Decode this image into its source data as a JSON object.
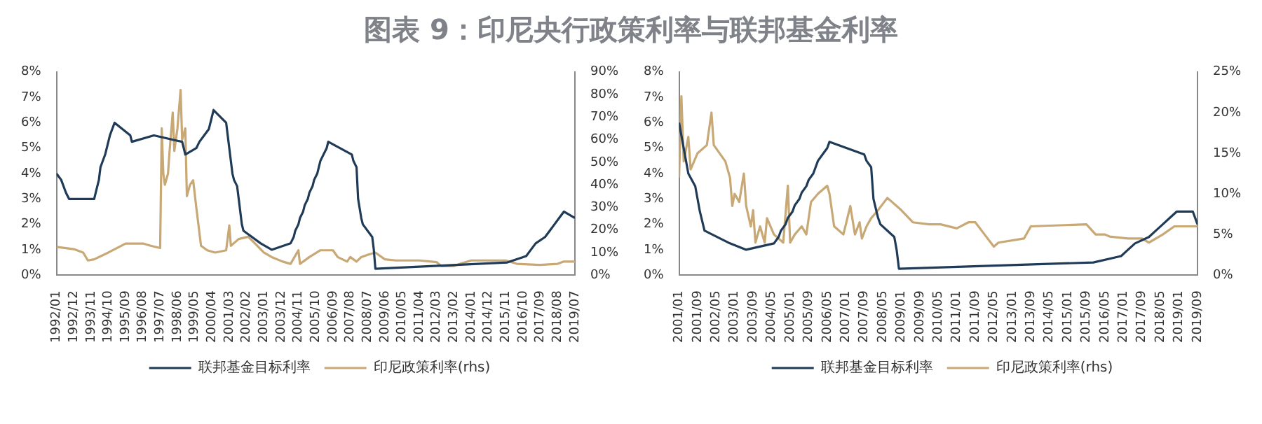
{
  "chart_data": [
    {
      "type": "line",
      "title": "图表 9：印尼央行政策利率与联邦基金利率",
      "legend": "bottom",
      "grid": false,
      "xlim": [
        "1992-01",
        "2019-07"
      ],
      "xticks": [
        {
          "value": "1992-01",
          "label": "1992/01"
        },
        {
          "value": "1992-12",
          "label": "1992/12"
        },
        {
          "value": "1993-11",
          "label": "1993/11"
        },
        {
          "value": "1994-10",
          "label": "1994/10"
        },
        {
          "value": "1995-09",
          "label": "1995/09"
        },
        {
          "value": "1996-08",
          "label": "1996/08"
        },
        {
          "value": "1997-07",
          "label": "1997/07"
        },
        {
          "value": "1998-06",
          "label": "1998/06"
        },
        {
          "value": "1999-05",
          "label": "1999/05"
        },
        {
          "value": "2000-04",
          "label": "2000/04"
        },
        {
          "value": "2001-03",
          "label": "2001/03"
        },
        {
          "value": "2002-02",
          "label": "2002/02"
        },
        {
          "value": "2003-01",
          "label": "2003/01"
        },
        {
          "value": "2003-12",
          "label": "2003/12"
        },
        {
          "value": "2004-11",
          "label": "2004/11"
        },
        {
          "value": "2005-10",
          "label": "2005/10"
        },
        {
          "value": "2006-09",
          "label": "2006/09"
        },
        {
          "value": "2007-08",
          "label": "2007/08"
        },
        {
          "value": "2008-07",
          "label": "2008/07"
        },
        {
          "value": "2009-06",
          "label": "2009/06"
        },
        {
          "value": "2010-05",
          "label": "2010/05"
        },
        {
          "value": "2011-04",
          "label": "2011/04"
        },
        {
          "value": "2012-03",
          "label": "2012/03"
        },
        {
          "value": "2013-02",
          "label": "2013/02"
        },
        {
          "value": "2014-01",
          "label": "2014/01"
        },
        {
          "value": "2014-12",
          "label": "2014/12"
        },
        {
          "value": "2015-11",
          "label": "2015/11"
        },
        {
          "value": "2016-10",
          "label": "2016/10"
        },
        {
          "value": "2017-09",
          "label": "2017/09"
        },
        {
          "value": "2018-08",
          "label": "2018/08"
        },
        {
          "value": "2019-07",
          "label": "2019/07"
        }
      ],
      "ylim": [
        0,
        8
      ],
      "yticks": [
        {
          "value": 0,
          "label": "0%"
        },
        {
          "value": 1,
          "label": "1%"
        },
        {
          "value": 2,
          "label": "2%"
        },
        {
          "value": 3,
          "label": "3%"
        },
        {
          "value": 4,
          "label": "4%"
        },
        {
          "value": 5,
          "label": "5%"
        },
        {
          "value": 6,
          "label": "6%"
        },
        {
          "value": 7,
          "label": "7%"
        },
        {
          "value": 8,
          "label": "8%"
        }
      ],
      "y2lim": [
        0,
        90
      ],
      "y2ticks": [
        {
          "value": 0,
          "label": "0%"
        },
        {
          "value": 10,
          "label": "10%"
        },
        {
          "value": 20,
          "label": "20%"
        },
        {
          "value": 30,
          "label": "30%"
        },
        {
          "value": 40,
          "label": "40%"
        },
        {
          "value": 50,
          "label": "50%"
        },
        {
          "value": 60,
          "label": "60%"
        },
        {
          "value": 70,
          "label": "70%"
        },
        {
          "value": 80,
          "label": "80%"
        },
        {
          "value": 90,
          "label": "90%"
        }
      ],
      "series": [
        {
          "name": "联邦基金目标利率",
          "color": "#1f3b57",
          "x": [
            "1992-01",
            "1992-04",
            "1992-07",
            "1992-09",
            "1994-01",
            "1994-02",
            "1994-04",
            "1994-05",
            "1994-08",
            "1994-11",
            "1995-02",
            "1995-07",
            "1995-12",
            "1996-01",
            "1997-03",
            "1998-09",
            "1998-10",
            "1998-11",
            "1999-06",
            "1999-08",
            "1999-11",
            "2000-02",
            "2000-03",
            "2000-05",
            "2001-01",
            "2001-02",
            "2001-03",
            "2001-04",
            "2001-05",
            "2001-06",
            "2001-08",
            "2001-09",
            "2001-10",
            "2001-11",
            "2001-12",
            "2002-11",
            "2003-06",
            "2004-06",
            "2004-08",
            "2004-09",
            "2004-11",
            "2004-12",
            "2005-02",
            "2005-03",
            "2005-05",
            "2005-06",
            "2005-08",
            "2005-09",
            "2005-11",
            "2005-12",
            "2006-01",
            "2006-03",
            "2006-05",
            "2006-06",
            "2007-09",
            "2007-10",
            "2007-12",
            "2008-01",
            "2008-03",
            "2008-04",
            "2008-10",
            "2008-11",
            "2008-12",
            "2015-12",
            "2016-12",
            "2017-03",
            "2017-06",
            "2017-12",
            "2018-03",
            "2018-06",
            "2018-09",
            "2018-12",
            "2019-07"
          ],
          "values": [
            4.0,
            3.75,
            3.25,
            3.0,
            3.0,
            3.25,
            3.75,
            4.25,
            4.75,
            5.5,
            6.0,
            5.75,
            5.5,
            5.25,
            5.5,
            5.25,
            5.0,
            4.75,
            5.0,
            5.25,
            5.5,
            5.75,
            6.0,
            6.5,
            6.0,
            5.5,
            5.0,
            4.5,
            4.0,
            3.75,
            3.5,
            3.0,
            2.5,
            2.0,
            1.75,
            1.25,
            1.0,
            1.25,
            1.5,
            1.75,
            2.0,
            2.25,
            2.5,
            2.75,
            3.0,
            3.25,
            3.5,
            3.75,
            4.0,
            4.25,
            4.5,
            4.75,
            5.0,
            5.25,
            4.75,
            4.5,
            4.25,
            3.0,
            2.25,
            2.0,
            1.5,
            1.0,
            0.25,
            0.5,
            0.75,
            1.0,
            1.25,
            1.5,
            1.75,
            2.0,
            2.25,
            2.5,
            2.25
          ]
        },
        {
          "name": "印尼政策利率(rhs)",
          "color": "#c8a875",
          "axis": "y2",
          "x": [
            "1992-01",
            "1992-12",
            "1993-06",
            "1993-09",
            "1994-01",
            "1994-10",
            "1995-09",
            "1996-08",
            "1997-01",
            "1997-07",
            "1997-08",
            "1997-09",
            "1997-10",
            "1997-12",
            "1998-01",
            "1998-03",
            "1998-04",
            "1998-06",
            "1998-08",
            "1998-09",
            "1998-11",
            "1998-12",
            "1999-02",
            "1999-04",
            "1999-06",
            "1999-09",
            "2000-01",
            "2000-06",
            "2001-01",
            "2001-03",
            "2001-04",
            "2001-09",
            "2002-03",
            "2002-06",
            "2003-01",
            "2003-06",
            "2004-01",
            "2004-06",
            "2004-11",
            "2004-12",
            "2005-06",
            "2006-01",
            "2006-09",
            "2006-12",
            "2007-06",
            "2007-08",
            "2007-12",
            "2008-03",
            "2008-07",
            "2008-12",
            "2009-06",
            "2010-01",
            "2011-04",
            "2012-03",
            "2012-06",
            "2013-02",
            "2013-06",
            "2014-01",
            "2015-11",
            "2016-06",
            "2017-09",
            "2018-08",
            "2018-12",
            "2019-07"
          ],
          "values": [
            12.5,
            11.5,
            10,
            6.5,
            7,
            10,
            14,
            14,
            13,
            12,
            65,
            45,
            40,
            45,
            55,
            72,
            55,
            65,
            82,
            60,
            65,
            35,
            40,
            42,
            30,
            13,
            11,
            10,
            11,
            22,
            13,
            16,
            17,
            15,
            10,
            8,
            6,
            5,
            11,
            5,
            8,
            11,
            11,
            8,
            6,
            8,
            6,
            8,
            9,
            10,
            7,
            6.5,
            6.5,
            5.75,
            4,
            4,
            5,
            6.5,
            6.5,
            5,
            4.5,
            5,
            6,
            6
          ]
        }
      ]
    },
    {
      "type": "line",
      "legend": "bottom",
      "grid": false,
      "xlim": [
        "2001-01",
        "2019-09"
      ],
      "xticks": [
        {
          "value": "2001-01",
          "label": "2001/01"
        },
        {
          "value": "2001-09",
          "label": "2001/09"
        },
        {
          "value": "2002-05",
          "label": "2002/05"
        },
        {
          "value": "2003-01",
          "label": "2003/01"
        },
        {
          "value": "2003-09",
          "label": "2003/09"
        },
        {
          "value": "2004-05",
          "label": "2004/05"
        },
        {
          "value": "2005-01",
          "label": "2005/01"
        },
        {
          "value": "2005-09",
          "label": "2005/09"
        },
        {
          "value": "2006-05",
          "label": "2006/05"
        },
        {
          "value": "2007-01",
          "label": "2007/01"
        },
        {
          "value": "2007-09",
          "label": "2007/09"
        },
        {
          "value": "2008-05",
          "label": "2008/05"
        },
        {
          "value": "2009-01",
          "label": "2009/01"
        },
        {
          "value": "2009-09",
          "label": "2009/09"
        },
        {
          "value": "2010-05",
          "label": "2010/05"
        },
        {
          "value": "2011-01",
          "label": "2011/01"
        },
        {
          "value": "2011-09",
          "label": "2011/09"
        },
        {
          "value": "2012-05",
          "label": "2012/05"
        },
        {
          "value": "2013-01",
          "label": "2013/01"
        },
        {
          "value": "2013-09",
          "label": "2013/09"
        },
        {
          "value": "2014-05",
          "label": "2014/05"
        },
        {
          "value": "2015-01",
          "label": "2015/01"
        },
        {
          "value": "2015-09",
          "label": "2015/09"
        },
        {
          "value": "2016-05",
          "label": "2016/05"
        },
        {
          "value": "2017-01",
          "label": "2017/01"
        },
        {
          "value": "2017-09",
          "label": "2017/09"
        },
        {
          "value": "2018-05",
          "label": "2018/05"
        },
        {
          "value": "2019-01",
          "label": "2019/01"
        },
        {
          "value": "2019-09",
          "label": "2019/09"
        }
      ],
      "ylim": [
        0,
        8
      ],
      "yticks": [
        {
          "value": 0,
          "label": "0%"
        },
        {
          "value": 1,
          "label": "1%"
        },
        {
          "value": 2,
          "label": "2%"
        },
        {
          "value": 3,
          "label": "3%"
        },
        {
          "value": 4,
          "label": "4%"
        },
        {
          "value": 5,
          "label": "5%"
        },
        {
          "value": 6,
          "label": "6%"
        },
        {
          "value": 7,
          "label": "7%"
        },
        {
          "value": 8,
          "label": "8%"
        }
      ],
      "y2lim": [
        0,
        25
      ],
      "y2ticks": [
        {
          "value": 0,
          "label": "0%"
        },
        {
          "value": 5,
          "label": "5%"
        },
        {
          "value": 10,
          "label": "10%"
        },
        {
          "value": 15,
          "label": "15%"
        },
        {
          "value": 20,
          "label": "20%"
        },
        {
          "value": 25,
          "label": "25%"
        }
      ],
      "series": [
        {
          "name": "联邦基金目标利率",
          "color": "#1f3b57",
          "x": [
            "2001-01",
            "2001-03",
            "2001-05",
            "2001-08",
            "2001-10",
            "2001-12",
            "2002-11",
            "2003-06",
            "2004-06",
            "2004-08",
            "2004-09",
            "2004-11",
            "2004-12",
            "2005-02",
            "2005-03",
            "2005-05",
            "2005-06",
            "2005-08",
            "2005-09",
            "2005-11",
            "2005-12",
            "2006-01",
            "2006-03",
            "2006-05",
            "2006-06",
            "2007-09",
            "2007-10",
            "2007-12",
            "2008-01",
            "2008-03",
            "2008-04",
            "2008-10",
            "2008-11",
            "2008-12",
            "2015-12",
            "2016-12",
            "2017-03",
            "2017-06",
            "2017-12",
            "2018-03",
            "2018-06",
            "2018-09",
            "2018-12",
            "2019-07",
            "2019-09"
          ],
          "values": [
            6.0,
            5.0,
            4.0,
            3.5,
            2.5,
            1.75,
            1.25,
            1.0,
            1.25,
            1.5,
            1.75,
            2.0,
            2.25,
            2.5,
            2.75,
            3.0,
            3.25,
            3.5,
            3.75,
            4.0,
            4.25,
            4.5,
            4.75,
            5.0,
            5.25,
            4.75,
            4.5,
            4.25,
            3.0,
            2.25,
            2.0,
            1.5,
            1.0,
            0.25,
            0.5,
            0.75,
            1.0,
            1.25,
            1.5,
            1.75,
            2.0,
            2.25,
            2.5,
            2.5,
            2.0
          ]
        },
        {
          "name": "印尼政策利率(rhs)",
          "color": "#c8a875",
          "axis": "y2",
          "x": [
            "2001-01",
            "2001-02",
            "2001-03",
            "2001-05",
            "2001-06",
            "2001-09",
            "2002-01",
            "2002-03",
            "2002-04",
            "2002-09",
            "2002-11",
            "2002-12",
            "2003-01",
            "2003-03",
            "2003-05",
            "2003-06",
            "2003-08",
            "2003-09",
            "2003-10",
            "2003-12",
            "2004-02",
            "2004-03",
            "2004-06",
            "2004-10",
            "2004-12",
            "2005-01",
            "2005-03",
            "2005-06",
            "2005-08",
            "2005-10",
            "2006-01",
            "2006-05",
            "2006-06",
            "2006-08",
            "2006-12",
            "2007-03",
            "2007-05",
            "2007-07",
            "2007-08",
            "2007-10",
            "2007-12",
            "2008-03",
            "2008-07",
            "2008-09",
            "2009-01",
            "2009-06",
            "2010-01",
            "2010-06",
            "2011-01",
            "2011-06",
            "2011-09",
            "2012-01",
            "2012-05",
            "2012-07",
            "2013-06",
            "2013-09",
            "2015-09",
            "2016-01",
            "2016-05",
            "2016-07",
            "2017-03",
            "2017-09",
            "2017-12",
            "2018-06",
            "2018-11",
            "2019-09"
          ],
          "values": [
            12,
            22,
            14,
            17,
            13,
            15,
            16,
            20,
            16,
            14,
            12,
            8.5,
            10,
            9,
            12.5,
            8.5,
            6,
            8,
            4,
            6,
            4,
            7,
            5,
            4,
            11,
            4,
            5,
            6,
            5,
            9,
            10,
            11,
            10,
            6,
            5,
            8.5,
            5,
            6.5,
            4.5,
            6,
            7,
            8,
            9.5,
            9,
            8,
            6.5,
            6.25,
            6.25,
            5.75,
            6.5,
            6.5,
            5,
            3.5,
            4,
            4.5,
            6,
            6.25,
            5,
            5,
            4.75,
            4.5,
            4.5,
            4,
            5,
            6,
            6
          ]
        }
      ]
    }
  ]
}
